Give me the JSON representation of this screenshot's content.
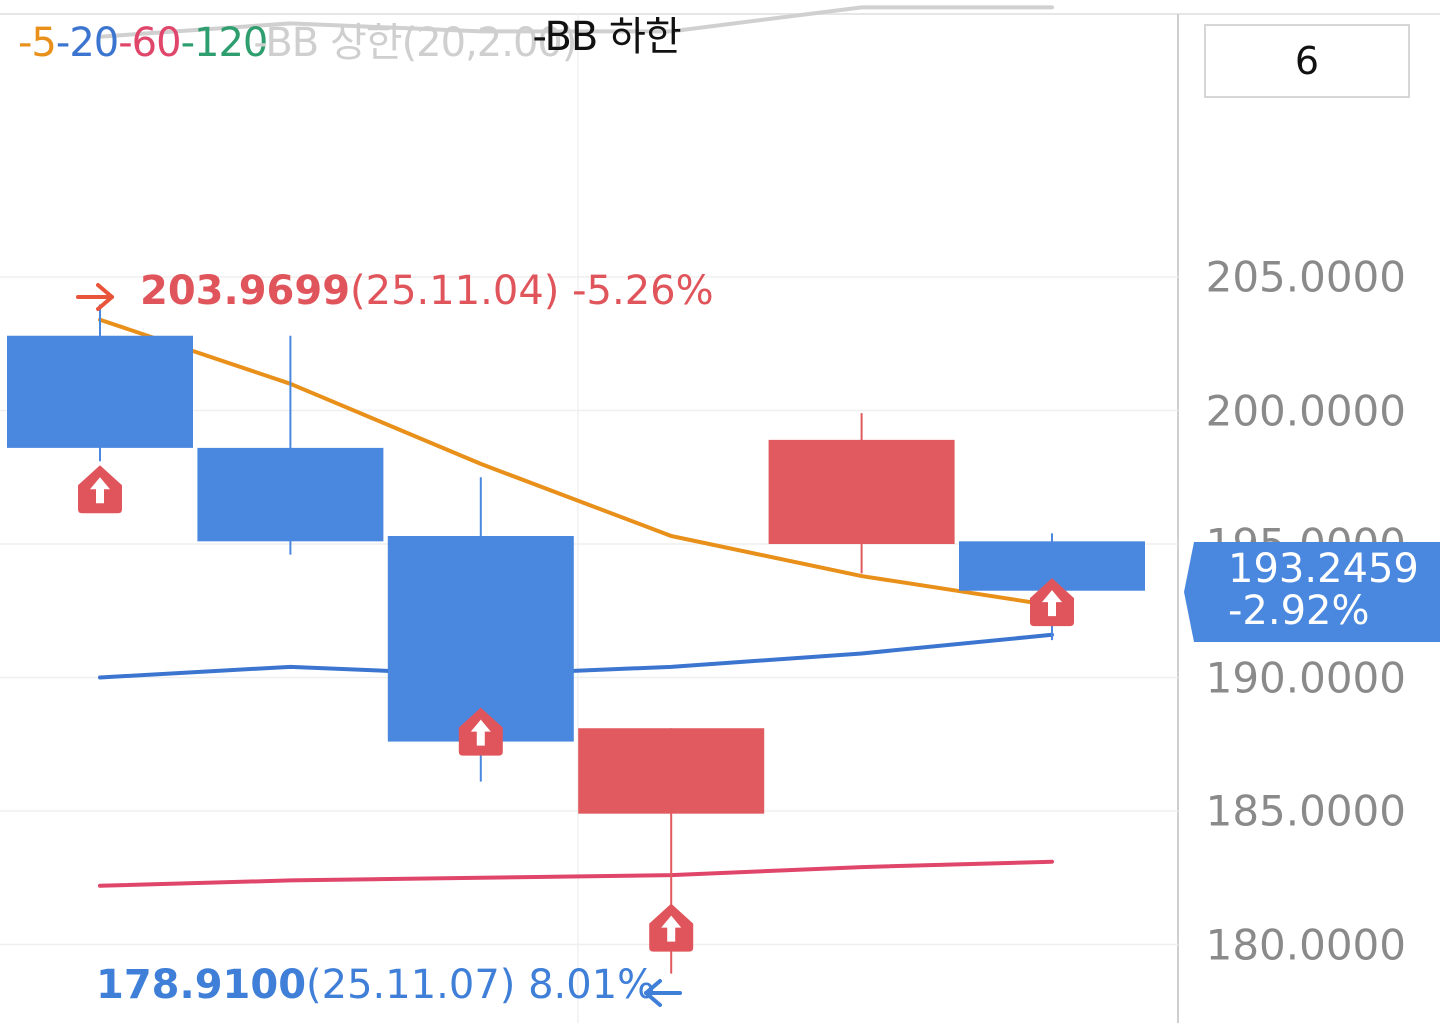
{
  "legend": {
    "ma5": "-5",
    "ma20": "-20",
    "ma60": "-60",
    "ma120": "-120",
    "bb_upper": "-BB 상한(20,2.00)",
    "bb_lower": "-BB 하한"
  },
  "period_box": "6",
  "price_tag": {
    "price": "193.2459",
    "change": "-2.92%",
    "value": 193.2459
  },
  "high_marker": {
    "value": "203.9699",
    "date": "(25.11.04)",
    "change": "-5.26%"
  },
  "low_marker": {
    "value": "178.9100",
    "date": "(25.11.07)",
    "change": "8.01%"
  },
  "colors": {
    "up": "#e05a5f",
    "down": "#4a88e0",
    "ma5": "#e8901a",
    "ma20": "#3b75cf",
    "ma60": "#e0456a",
    "ma120": "#2e9e6e",
    "bb": "#d0d0d0",
    "signal": "#e0555b"
  },
  "chart_data": {
    "type": "candlestick",
    "y_ticks": [
      "205.0000",
      "200.0000",
      "195.0000",
      "190.0000",
      "185.0000",
      "180.0000"
    ],
    "y_tick_values": [
      205,
      200,
      195,
      190,
      185,
      180
    ],
    "candles": [
      {
        "open": 202.8,
        "high": 203.97,
        "low": 198.1,
        "close": 198.6
      },
      {
        "open": 198.6,
        "high": 202.8,
        "low": 194.6,
        "close": 195.1
      },
      {
        "open": 195.3,
        "high": 197.5,
        "low": 186.1,
        "close": 187.6
      },
      {
        "open": 184.9,
        "high": 188.1,
        "low": 178.91,
        "close": 188.1
      },
      {
        "open": 195.0,
        "high": 199.9,
        "low": 193.9,
        "close": 198.9
      },
      {
        "open": 195.1,
        "high": 195.4,
        "low": 191.4,
        "close": 193.25
      }
    ],
    "series": [
      {
        "name": "5",
        "values": [
          203.4,
          201.0,
          198.0,
          195.3,
          193.8,
          192.7
        ]
      },
      {
        "name": "20",
        "values": [
          190.0,
          190.4,
          190.1,
          190.4,
          190.9,
          191.6
        ]
      },
      {
        "name": "60",
        "values": [
          182.2,
          182.4,
          182.5,
          182.6,
          182.9,
          183.1
        ]
      },
      {
        "name": "BB 상한(20,2.00)",
        "values": [
          214.0,
          214.5,
          214.2,
          214.2,
          215.1,
          215.1
        ]
      }
    ],
    "signals": [
      0,
      2,
      3,
      5
    ]
  }
}
